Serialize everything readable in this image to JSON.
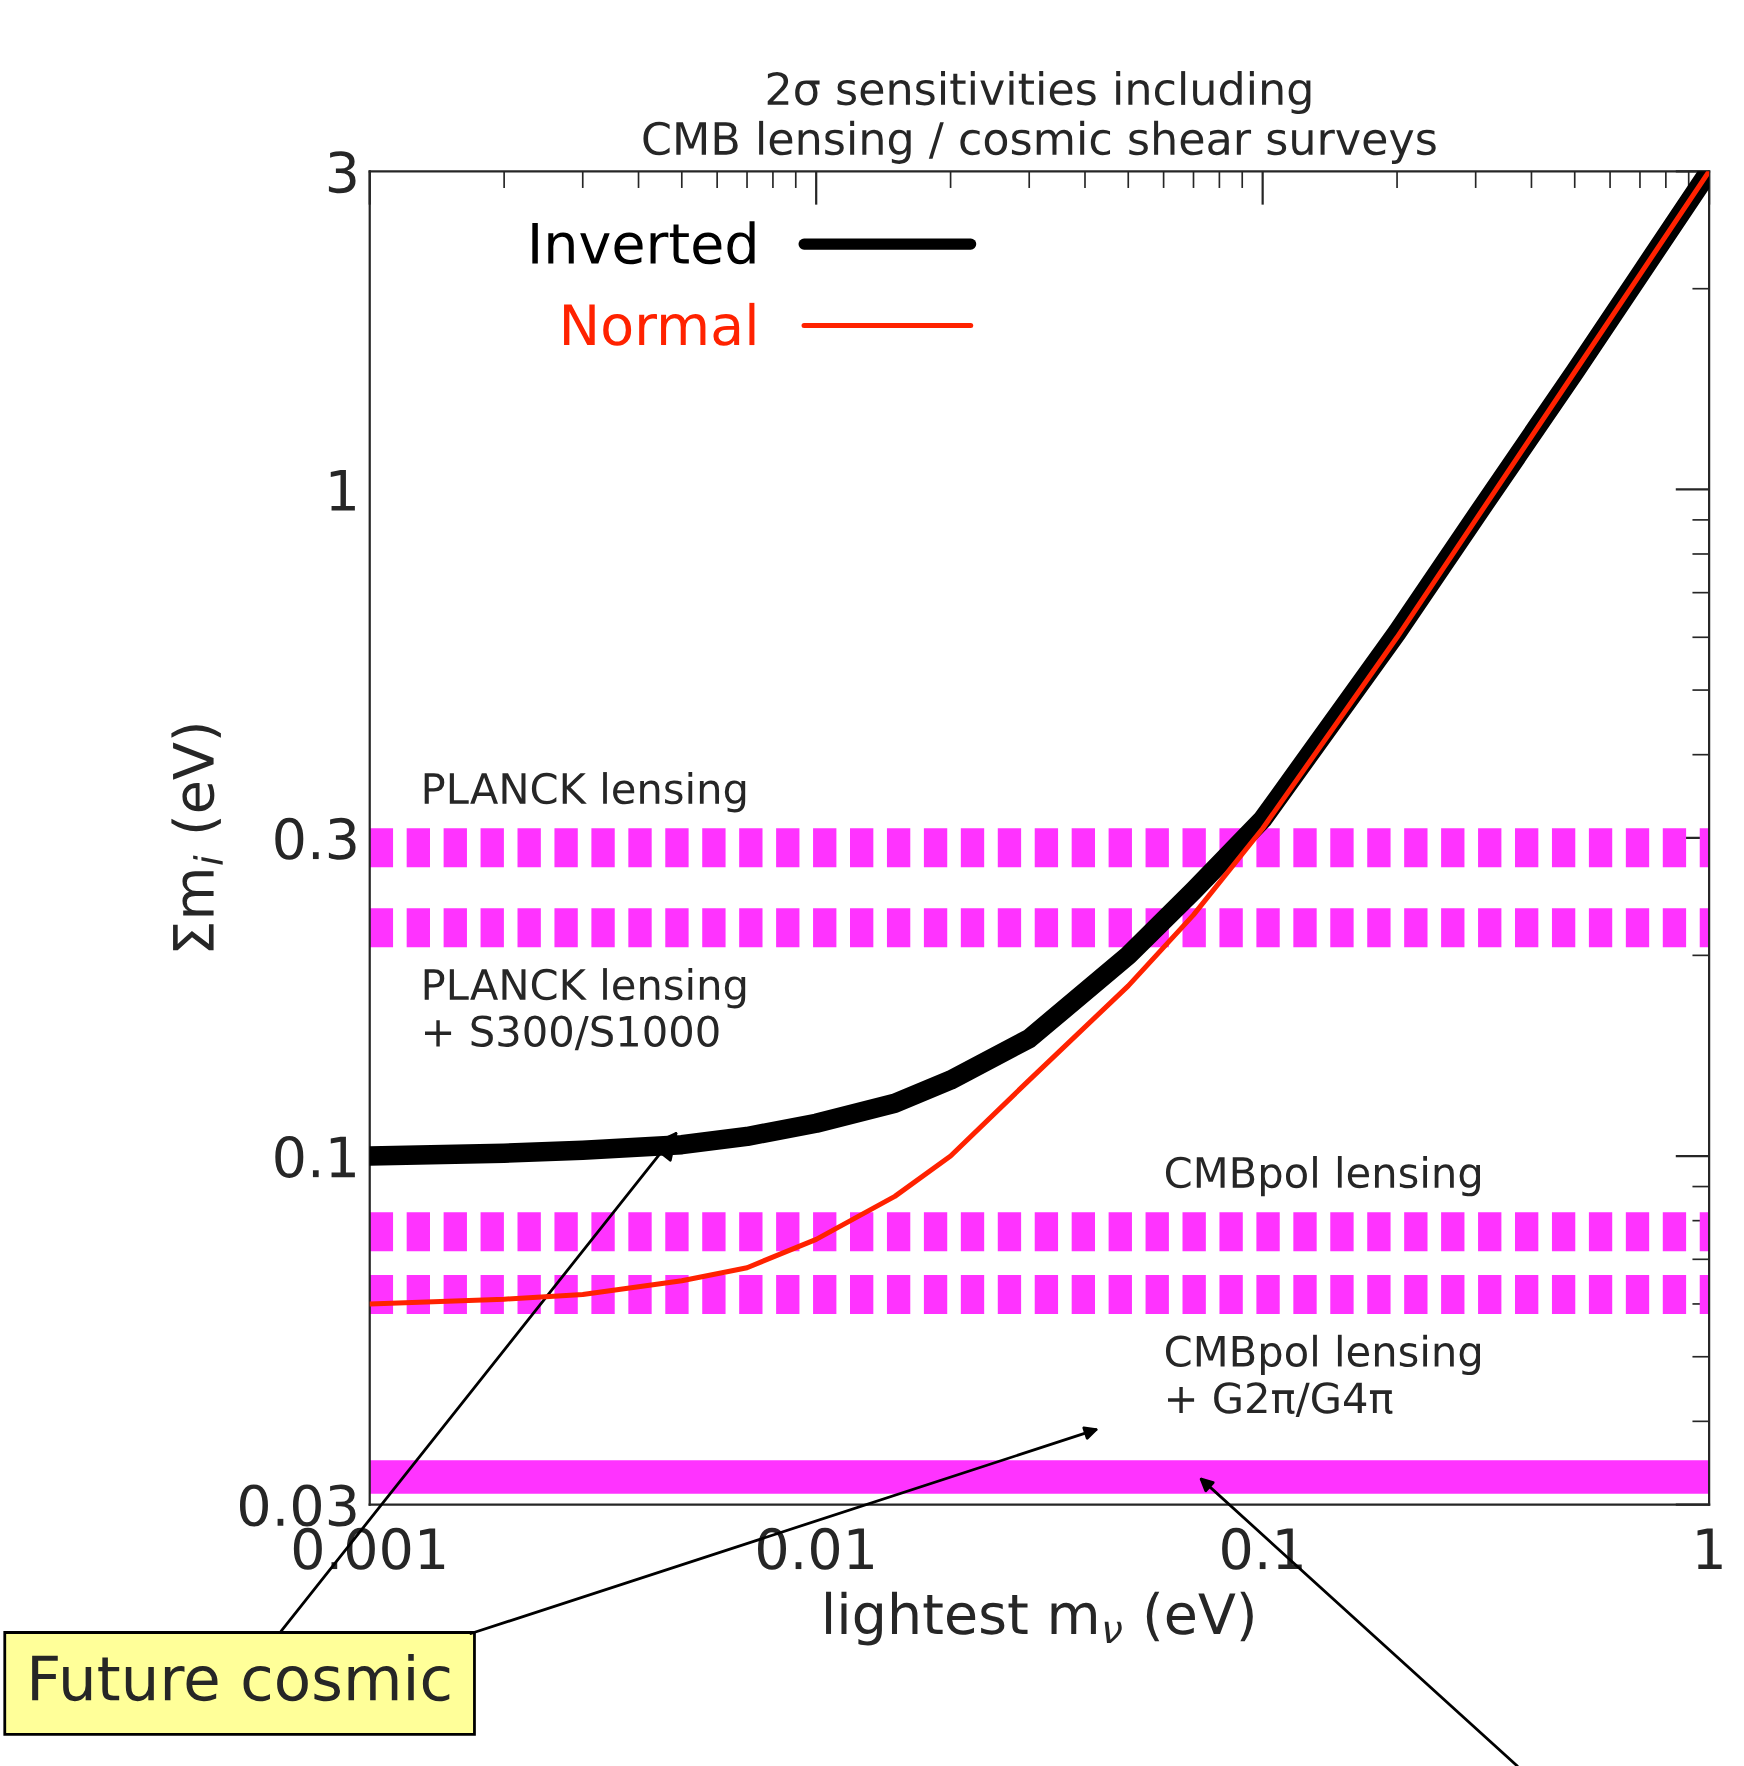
{
  "chart_data": {
    "type": "line",
    "title": "2σ sensitivities including\nCMB lensing / cosmic shear surveys",
    "xlabel": "lightest m$_{ν}$ (eV)",
    "ylabel": "Σm$_{i}$ (eV)",
    "log": "xy",
    "xlim": [
      0.001,
      1
    ],
    "ylim": [
      0.03,
      3
    ],
    "xticks": [
      0.001,
      0.01,
      0.1,
      1
    ],
    "yticks": [
      0.03,
      0.1,
      0.3,
      1,
      3
    ],
    "legend": "top left",
    "grid": false,
    "x": [
      0.001,
      0.002,
      0.003,
      0.005,
      0.007,
      0.01,
      0.015,
      0.02,
      0.03,
      0.05,
      0.07,
      0.1,
      0.2,
      0.3,
      0.5,
      0.7,
      1
    ],
    "series": [
      {
        "name": "Inverted",
        "color": "#000000",
        "values": [
          0.1,
          0.101,
          0.102,
          0.104,
          0.107,
          0.112,
          0.12,
          0.13,
          0.15,
          0.2,
          0.25,
          0.32,
          0.61,
          0.91,
          1.5,
          2.1,
          3.0
        ]
      },
      {
        "name": "Normal",
        "color": "#ff2200",
        "values": [
          0.06,
          0.061,
          0.062,
          0.065,
          0.068,
          0.075,
          0.087,
          0.1,
          0.13,
          0.18,
          0.23,
          0.31,
          0.6,
          0.9,
          1.5,
          2.1,
          3.0
        ]
      }
    ],
    "ref_lines": [
      {
        "axis": "y",
        "value": 0.29,
        "label": "PLANCK lensing",
        "color": "#ff33ff",
        "line_style": "dashed"
      },
      {
        "axis": "y",
        "value": 0.22,
        "label": "PLANCK lensing\n+ S300/S1000",
        "color": "#ff33ff",
        "line_style": "dashed"
      },
      {
        "axis": "y",
        "value": 0.077,
        "label": "CMBpol lensing",
        "color": "#ff33ff",
        "line_style": "dashed"
      },
      {
        "axis": "y",
        "value": 0.062,
        "label": "CMBpol lensing\n+ G2π/G4π",
        "color": "#ff33ff",
        "line_style": "dashed"
      },
      {
        "axis": "y",
        "value": 0.033,
        "label": null,
        "color": "#ff33ff",
        "line_style": "solid"
      }
    ],
    "annotations": [
      "Future cosmic"
    ]
  }
}
